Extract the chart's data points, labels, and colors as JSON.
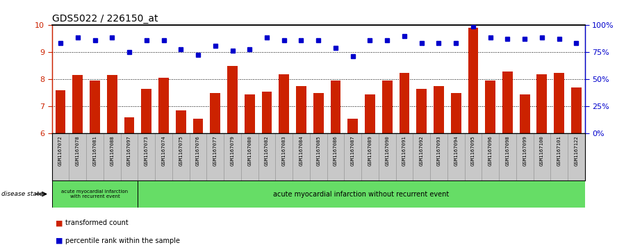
{
  "title": "GDS5022 / 226150_at",
  "samples": [
    "GSM1167072",
    "GSM1167078",
    "GSM1167081",
    "GSM1167088",
    "GSM1167097",
    "GSM1167073",
    "GSM1167074",
    "GSM1167075",
    "GSM1167076",
    "GSM1167077",
    "GSM1167079",
    "GSM1167080",
    "GSM1167082",
    "GSM1167083",
    "GSM1167084",
    "GSM1167085",
    "GSM1167086",
    "GSM1167087",
    "GSM1167089",
    "GSM1167090",
    "GSM1167091",
    "GSM1167092",
    "GSM1167093",
    "GSM1167094",
    "GSM1167095",
    "GSM1167096",
    "GSM1167098",
    "GSM1167099",
    "GSM1167100",
    "GSM1167101",
    "GSM1167122"
  ],
  "bar_values": [
    7.6,
    8.15,
    7.95,
    8.15,
    6.6,
    7.65,
    8.05,
    6.85,
    6.55,
    7.5,
    8.5,
    7.45,
    7.55,
    8.2,
    7.75,
    7.5,
    7.95,
    6.55,
    7.45,
    7.95,
    8.25,
    7.65,
    7.75,
    7.5,
    9.9,
    7.95,
    8.3,
    7.45,
    8.2,
    8.25,
    7.7
  ],
  "dot_values": [
    9.35,
    9.55,
    9.45,
    9.55,
    9.0,
    9.45,
    9.45,
    9.1,
    8.9,
    9.25,
    9.05,
    9.1,
    9.55,
    9.45,
    9.45,
    9.45,
    9.15,
    8.85,
    9.45,
    9.45,
    9.6,
    9.35,
    9.35,
    9.35,
    9.95,
    9.55,
    9.5,
    9.5,
    9.55,
    9.5,
    9.35
  ],
  "ymin": 6,
  "ymax": 10,
  "yticks_left": [
    6,
    7,
    8,
    9,
    10
  ],
  "yticks_right": [
    0,
    25,
    50,
    75,
    100
  ],
  "bar_color": "#cc2200",
  "dot_color": "#0000cc",
  "group1_count": 5,
  "group1_label": "acute myocardial infarction\nwith recurrent event",
  "group2_label": "acute myocardial infarction without recurrent event",
  "disease_state_label": "disease state",
  "legend_bar_label": "transformed count",
  "legend_dot_label": "percentile rank within the sample",
  "xtick_bg": "#c8c8c8",
  "green_color": "#66dd66",
  "grid_lines": [
    7,
    8,
    9
  ]
}
